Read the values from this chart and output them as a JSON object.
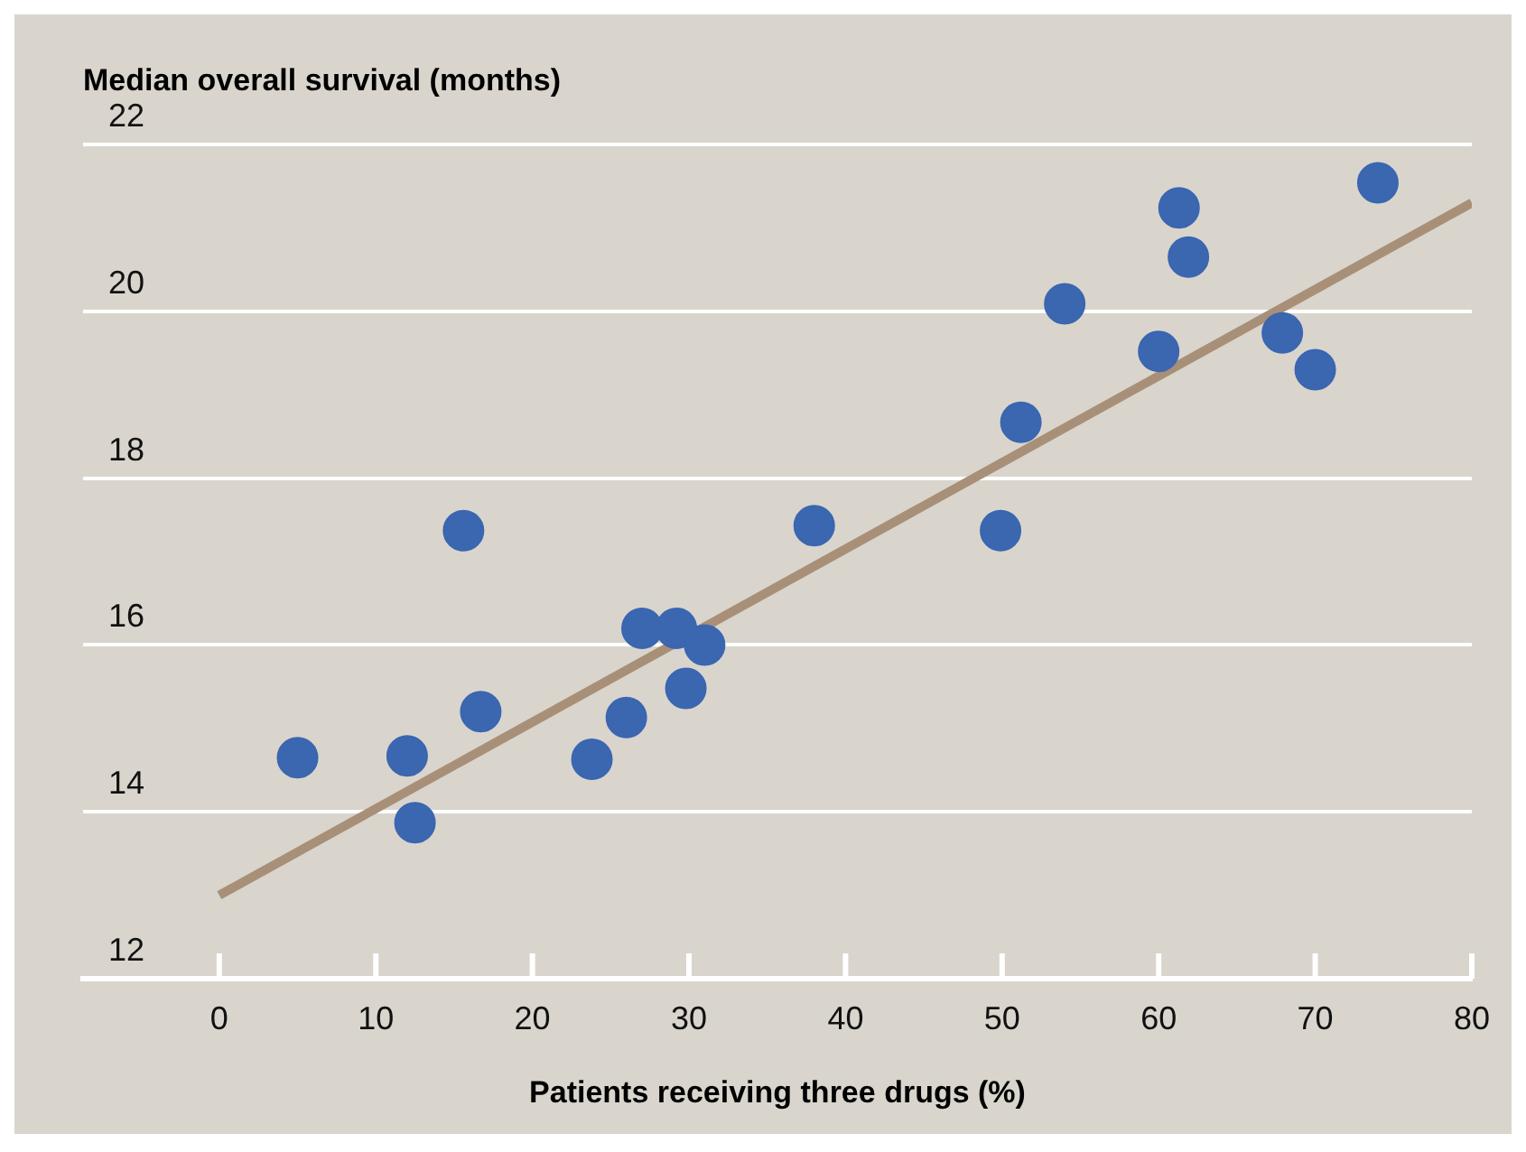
{
  "chart_data": {
    "type": "scatter",
    "ylabel": "Median overall survival (months)",
    "xlabel": "Patients receiving three drugs (%)",
    "series": [
      {
        "type": "scatter",
        "marker": "circle",
        "color": "#3b66b0",
        "x": [
          5,
          12,
          12.5,
          15.6,
          16.7,
          23.8,
          26,
          27,
          29.2,
          29.8,
          31,
          38,
          49.9,
          51.2,
          54,
          60,
          61.3,
          61.9,
          67.9,
          70,
          74
        ],
        "values": [
          14.65,
          14.67,
          13.87,
          17.37,
          15.2,
          14.63,
          15.13,
          16.2,
          16.2,
          15.48,
          16,
          17.43,
          17.37,
          18.67,
          20.09,
          19.52,
          21.24,
          20.65,
          19.74,
          19.3,
          21.54
        ]
      },
      {
        "type": "line",
        "marker": "none",
        "color": "#a89078",
        "x": [
          0,
          80
        ],
        "values": [
          13.0,
          21.3
        ]
      }
    ],
    "xlim": [
      -8.7,
      80
    ],
    "xticks": [
      0,
      10,
      20,
      30,
      40,
      50,
      60,
      70,
      80
    ],
    "ylim": [
      12,
      22
    ],
    "yticks": [
      12,
      14,
      16,
      18,
      20,
      22
    ],
    "grid": "y",
    "legend": false
  }
}
